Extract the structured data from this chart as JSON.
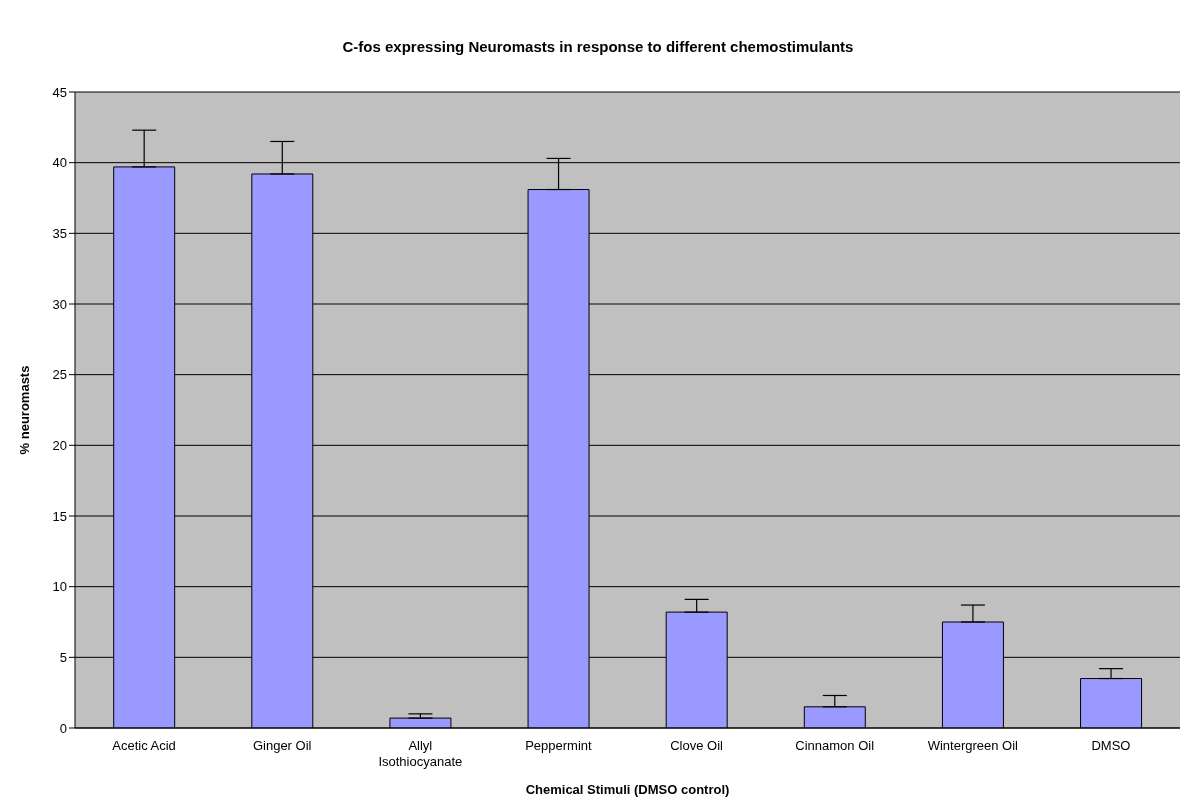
{
  "chart_data": {
    "type": "bar",
    "title": "C-fos expressing Neuromasts in response to different chemostimulants",
    "xlabel": "Chemical Stimuli (DMSO control)",
    "ylabel": "% neuromasts",
    "categories": [
      "Acetic Acid",
      "Ginger Oil",
      "Allyl Isothiocyanate",
      "Peppermint",
      "Clove Oil",
      "Cinnamon Oil",
      "Wintergreen Oil",
      "DMSO"
    ],
    "values": [
      39.7,
      39.2,
      0.7,
      38.1,
      8.2,
      1.5,
      7.5,
      3.5
    ],
    "errors": [
      [
        39.7,
        42.3
      ],
      [
        39.2,
        41.5
      ],
      [
        0.7,
        1.0
      ],
      [
        38.1,
        40.3
      ],
      [
        8.2,
        9.1
      ],
      [
        1.5,
        2.3
      ],
      [
        7.5,
        8.7
      ],
      [
        3.5,
        4.2
      ]
    ],
    "color": "#9999ff",
    "ylim": [
      0,
      45
    ],
    "yticks": [
      0,
      5,
      10,
      15,
      20,
      25,
      30,
      35,
      40,
      45
    ],
    "grid": "y",
    "legend": false
  }
}
